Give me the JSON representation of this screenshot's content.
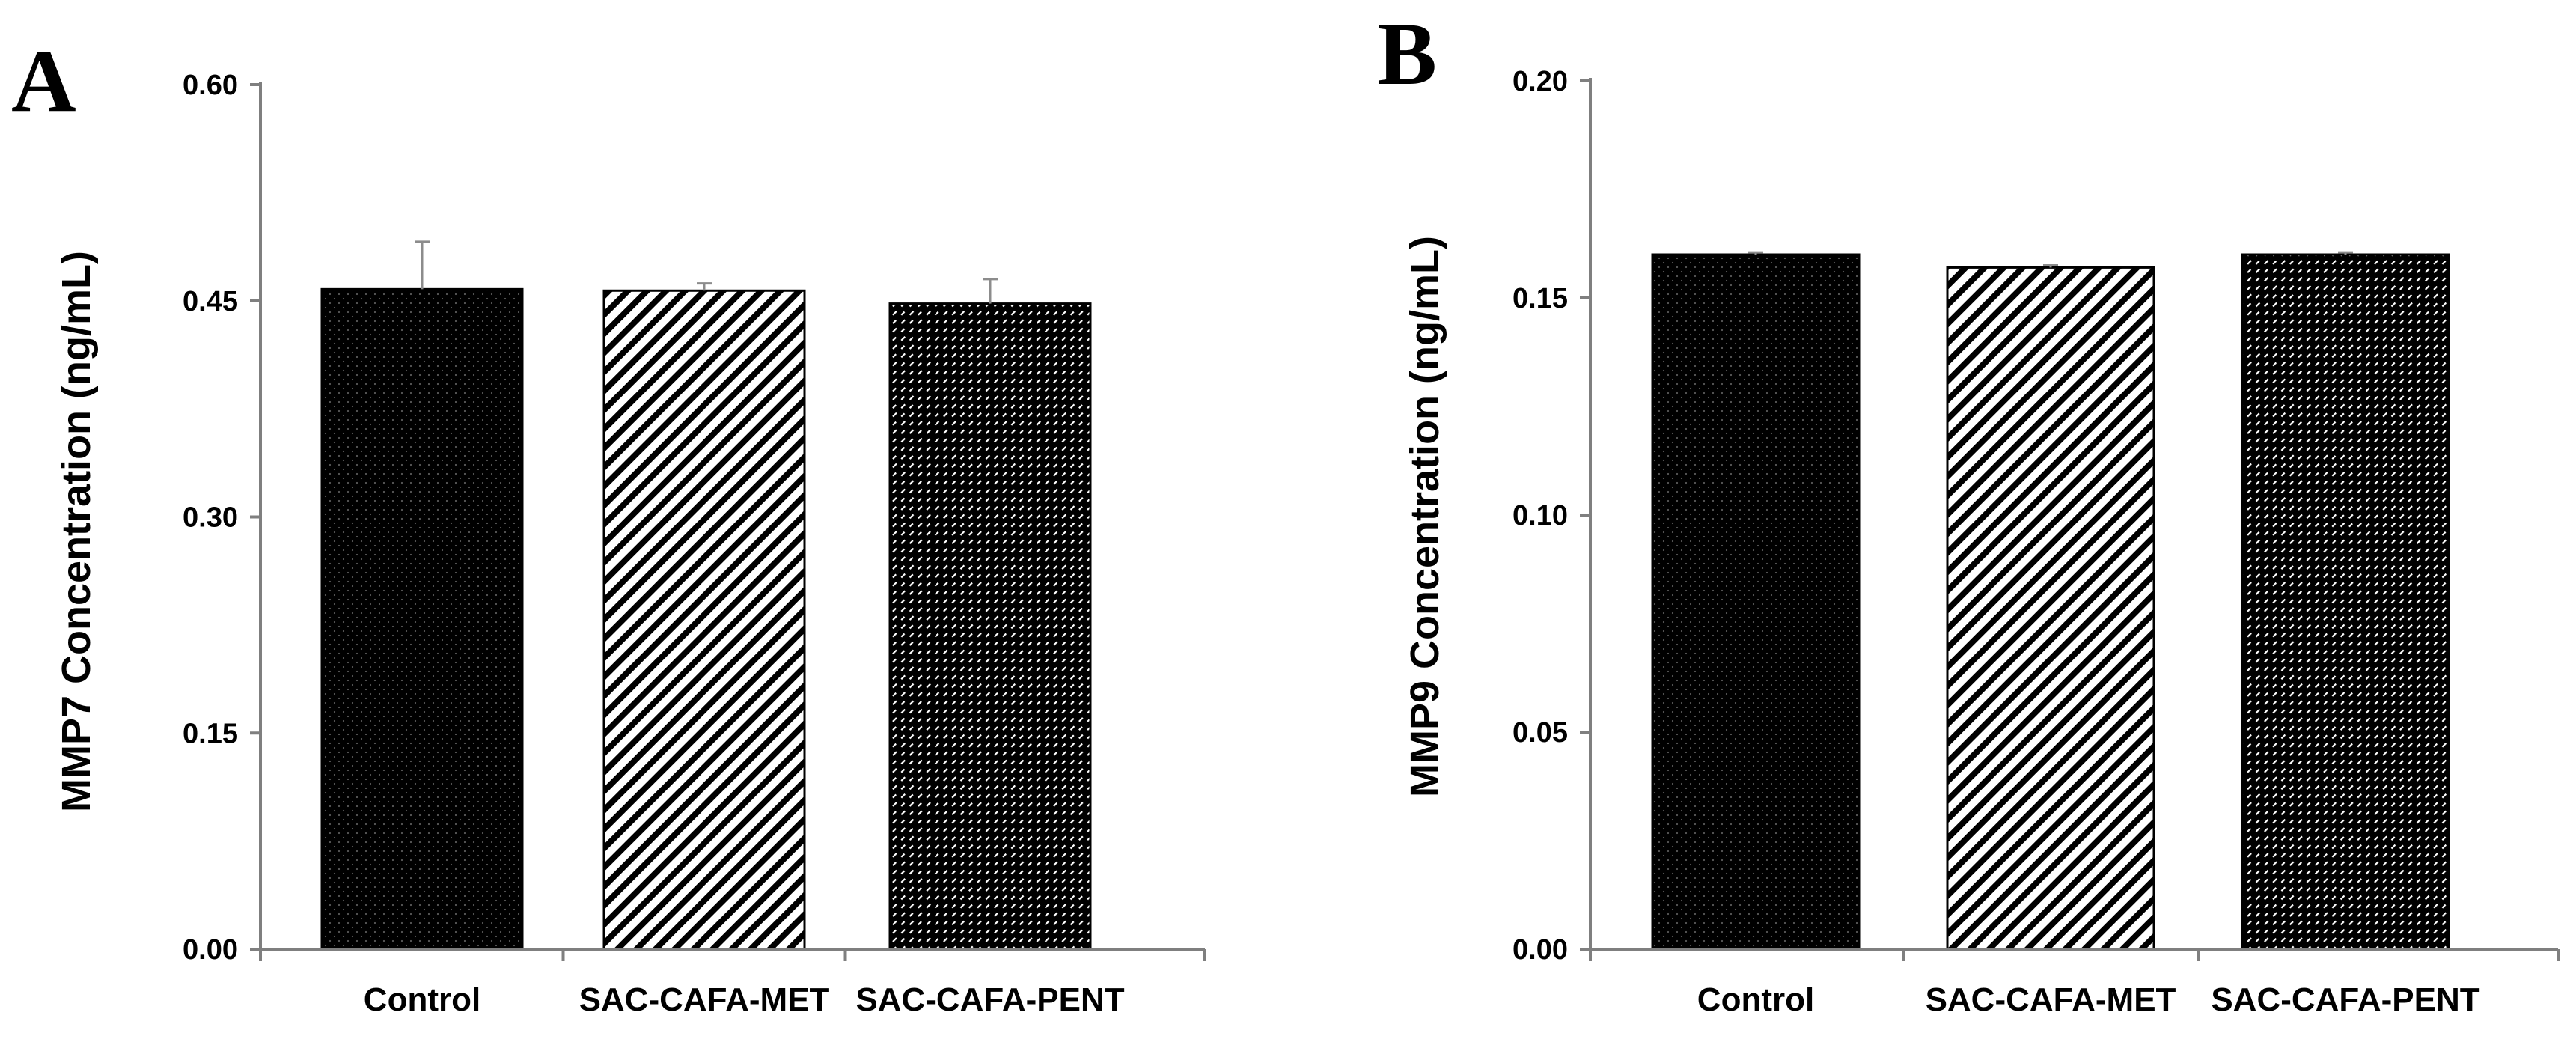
{
  "figure_caption": "",
  "colors": {
    "axis": "#7f7f7f",
    "bar_outline": "#000000",
    "bar_fill": "#000000",
    "hatch_light": "#ffffff",
    "error_bar": "#8c8c8c"
  },
  "chart_data": [
    {
      "type": "bar",
      "panel_label": "A",
      "title": "",
      "xlabel": "",
      "ylabel": "MMP7 Concentration (ng/mL)",
      "ylim": [
        0,
        0.6
      ],
      "y_ticks": [
        0,
        0.15,
        0.3,
        0.45,
        0.6
      ],
      "y_tick_labels": [
        "0.00",
        "0.15",
        "0.30",
        "0.45",
        "0.60"
      ],
      "grid": false,
      "categories": [
        "Control",
        "SAC-CAFA-MET",
        "SAC-CAFA-PENT"
      ],
      "patterns": [
        "dotted-solid",
        "diagonal-stripes",
        "dense-dashes"
      ],
      "values": [
        0.458,
        0.457,
        0.448
      ],
      "errors": [
        0.033,
        0.005,
        0.017
      ]
    },
    {
      "type": "bar",
      "panel_label": "B",
      "title": "",
      "xlabel": "",
      "ylabel": "MMP9 Concentration (ng/mL)",
      "ylim": [
        0,
        0.2
      ],
      "y_ticks": [
        0,
        0.05,
        0.1,
        0.15,
        0.2
      ],
      "y_tick_labels": [
        "0.00",
        "0.05",
        "0.10",
        "0.15",
        "0.20"
      ],
      "grid": false,
      "categories": [
        "Control",
        "SAC-CAFA-MET",
        "SAC-CAFA-PENT"
      ],
      "patterns": [
        "dotted-solid",
        "diagonal-stripes",
        "dense-dashes"
      ],
      "values": [
        0.16,
        0.157,
        0.16
      ],
      "errors": [
        0.0005,
        0.0005,
        0.0005
      ]
    }
  ]
}
